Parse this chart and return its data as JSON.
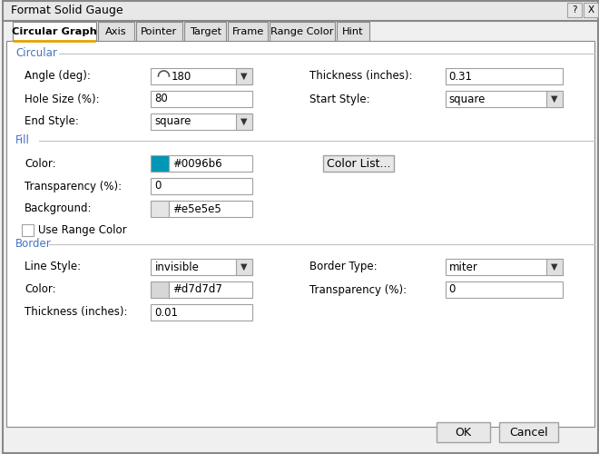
{
  "title": "Format Solid Gauge",
  "bg_color": "#f0f0f0",
  "dialog_bg": "#f0f0f0",
  "white": "#ffffff",
  "border_color": "#a0a0a0",
  "text_color": "#000000",
  "blue_text": "#4472c4",
  "active_tab": "Circular Graph",
  "tabs": [
    "Circular Graph",
    "Axis",
    "Pointer",
    "Target",
    "Frame",
    "Range Color",
    "Hint"
  ],
  "section_circular": "Circular",
  "section_fill": "Fill",
  "section_border": "Border",
  "fields": {
    "angle_label": "Angle (deg):",
    "angle_value": "180",
    "hole_size_label": "Hole Size (%):",
    "hole_size_value": "80",
    "end_style_label": "End Style:",
    "end_style_value": "square",
    "thickness_label": "Thickness (inches):",
    "thickness_value": "0.31",
    "start_style_label": "Start Style:",
    "start_style_value": "square",
    "fill_color_label": "Color:",
    "fill_color_value": "#0096b6",
    "fill_color_hex": "#0096b6",
    "transparency_label": "Transparency (%):",
    "transparency_value": "0",
    "background_label": "Background:",
    "background_value": "#e5e5e5",
    "background_color_hex": "#e5e5e5",
    "use_range_label": "Use Range Color",
    "line_style_label": "Line Style:",
    "line_style_value": "invisible",
    "border_type_label": "Border Type:",
    "border_type_value": "miter",
    "border_color_label": "Color:",
    "border_color_value": "#d7d7d7",
    "border_color_hex": "#d7d7d7",
    "border_transparency_label": "Transparency (%):",
    "border_transparency_value": "0",
    "border_thickness_label": "Thickness (inches):",
    "border_thickness_value": "0.01"
  },
  "ok_btn": "OK",
  "cancel_btn": "Cancel"
}
